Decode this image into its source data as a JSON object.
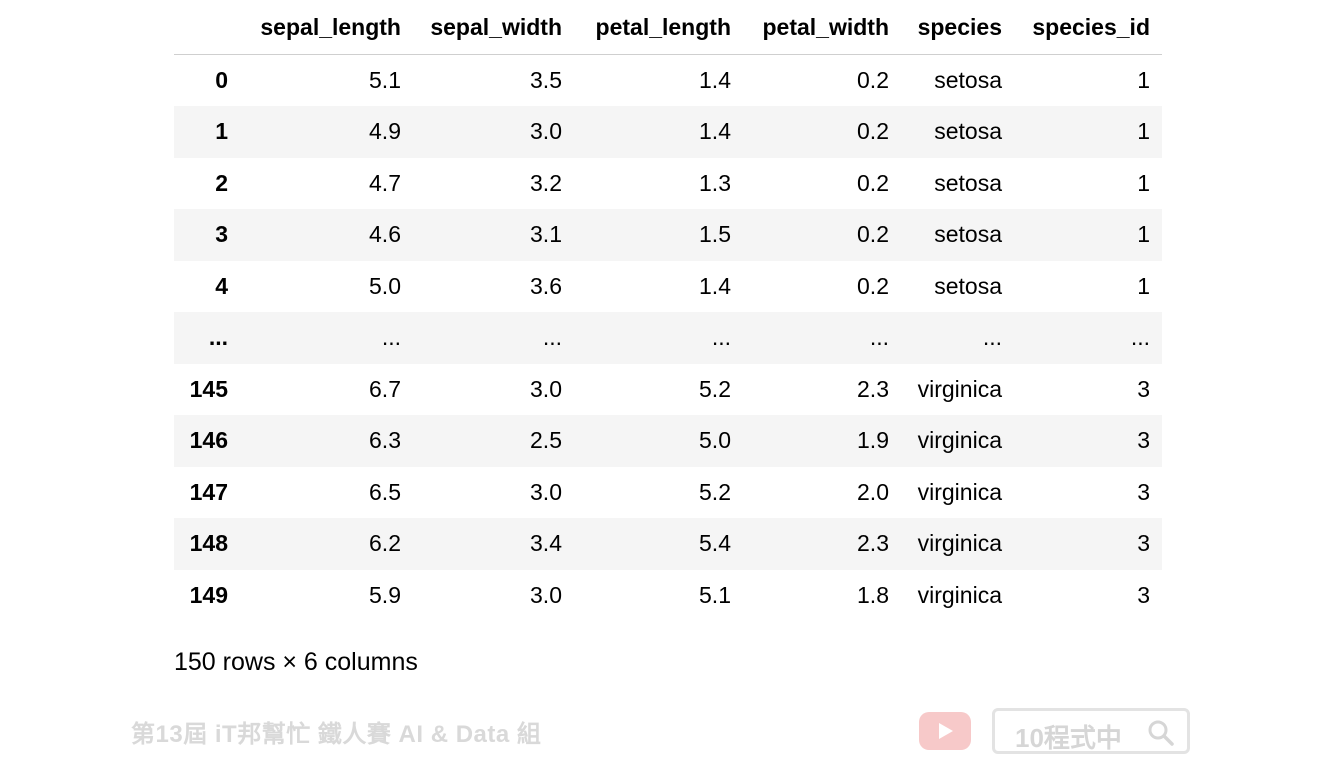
{
  "table": {
    "columns": [
      "",
      "sepal_length",
      "sepal_width",
      "petal_length",
      "petal_width",
      "species",
      "species_id"
    ],
    "rows": [
      {
        "index": "0",
        "cells": [
          "5.1",
          "3.5",
          "1.4",
          "0.2",
          "setosa",
          "1"
        ]
      },
      {
        "index": "1",
        "cells": [
          "4.9",
          "3.0",
          "1.4",
          "0.2",
          "setosa",
          "1"
        ]
      },
      {
        "index": "2",
        "cells": [
          "4.7",
          "3.2",
          "1.3",
          "0.2",
          "setosa",
          "1"
        ]
      },
      {
        "index": "3",
        "cells": [
          "4.6",
          "3.1",
          "1.5",
          "0.2",
          "setosa",
          "1"
        ]
      },
      {
        "index": "4",
        "cells": [
          "5.0",
          "3.6",
          "1.4",
          "0.2",
          "setosa",
          "1"
        ]
      },
      {
        "index": "...",
        "cells": [
          "...",
          "...",
          "...",
          "...",
          "...",
          "..."
        ]
      },
      {
        "index": "145",
        "cells": [
          "6.7",
          "3.0",
          "5.2",
          "2.3",
          "virginica",
          "3"
        ]
      },
      {
        "index": "146",
        "cells": [
          "6.3",
          "2.5",
          "5.0",
          "1.9",
          "virginica",
          "3"
        ]
      },
      {
        "index": "147",
        "cells": [
          "6.5",
          "3.0",
          "5.2",
          "2.0",
          "virginica",
          "3"
        ]
      },
      {
        "index": "148",
        "cells": [
          "6.2",
          "3.4",
          "5.4",
          "2.3",
          "virginica",
          "3"
        ]
      },
      {
        "index": "149",
        "cells": [
          "5.9",
          "3.0",
          "5.1",
          "1.8",
          "virginica",
          "3"
        ]
      }
    ]
  },
  "shape_note": "150 rows × 6 columns",
  "watermark": {
    "event_text": "第13屆 iT邦幫忙 鐵人賽    AI & Data 組",
    "brand_text": "10程式中",
    "icons": [
      "youtube-icon",
      "search-icon"
    ]
  },
  "colors": {
    "stripe": "#f5f5f5",
    "header_rule": "#cfcfcf",
    "watermark_gray": "#d9d9d9",
    "youtube_pink": "#f7c9c9"
  }
}
